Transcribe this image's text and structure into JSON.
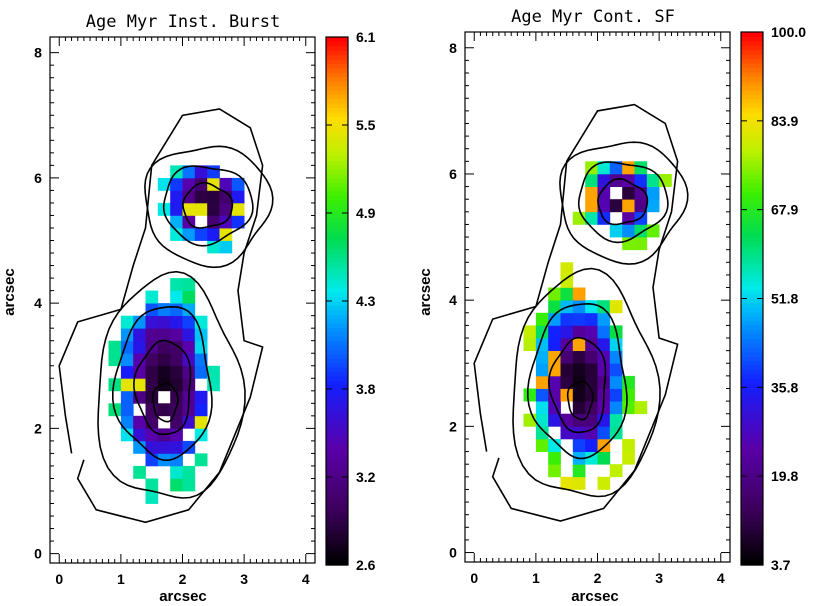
{
  "chart_data": [
    {
      "type": "heatmap",
      "title": "Age Myr Inst. Burst",
      "xlabel": "arcsec",
      "ylabel": "arcsec",
      "xlim": [
        -0.15,
        4.15
      ],
      "ylim": [
        -0.15,
        8.25
      ],
      "xticks": [
        "0",
        "1",
        "2",
        "3",
        "4"
      ],
      "yticks": [
        "0",
        "2",
        "4",
        "6",
        "8"
      ],
      "colorbar": {
        "min": 2.6,
        "max": 6.1,
        "ticks": [
          "2.6",
          "3.2",
          "3.8",
          "4.3",
          "4.9",
          "5.5",
          "6.1"
        ],
        "placement": "right"
      },
      "colormap": "rainbow",
      "cell_size_arcsec": 0.2,
      "blobs": [
        {
          "cx": 2.4,
          "cy": 5.6,
          "rx": 0.55,
          "ry": 0.55,
          "core": 2.75,
          "edge": 4.6
        },
        {
          "cx": 1.7,
          "cy": 2.7,
          "rx": 0.65,
          "ry": 1.25,
          "core": 2.7,
          "edge": 4.8
        }
      ],
      "contours": [
        {
          "cx": 2.4,
          "cy": 5.58,
          "rx": 1.02,
          "ry": 0.95
        },
        {
          "cx": 2.4,
          "cy": 5.58,
          "rx": 0.72,
          "ry": 0.62
        },
        {
          "cx": 2.4,
          "cy": 5.55,
          "rx": 0.4,
          "ry": 0.35
        },
        {
          "cx": 1.78,
          "cy": 2.6,
          "rx": 1.18,
          "ry": 1.78
        },
        {
          "cx": 1.7,
          "cy": 2.72,
          "rx": 0.78,
          "ry": 1.22
        },
        {
          "cx": 1.7,
          "cy": 2.65,
          "rx": 0.45,
          "ry": 0.75
        },
        {
          "cx": 1.72,
          "cy": 2.42,
          "rx": 0.2,
          "ry": 0.3
        }
      ]
    },
    {
      "type": "heatmap",
      "title": "Age Myr Cont. SF",
      "xlabel": "arcsec",
      "ylabel": "arcsec",
      "xlim": [
        -0.15,
        4.15
      ],
      "ylim": [
        -0.15,
        8.25
      ],
      "xticks": [
        "0",
        "1",
        "2",
        "3",
        "4"
      ],
      "yticks": [
        "0",
        "2",
        "4",
        "6",
        "8"
      ],
      "colorbar": {
        "min": 3.7,
        "max": 100.0,
        "ticks": [
          "3.7",
          "19.8",
          "35.8",
          "51.8",
          "67.9",
          "83.9",
          "100.0"
        ],
        "placement": "right"
      },
      "colormap": "rainbow",
      "cell_size_arcsec": 0.2,
      "blobs": [
        {
          "cx": 2.4,
          "cy": 5.6,
          "rx": 0.55,
          "ry": 0.55,
          "core": 8,
          "edge": 80
        },
        {
          "cx": 1.7,
          "cy": 2.7,
          "rx": 0.7,
          "ry": 1.3,
          "core": 6,
          "edge": 85
        }
      ],
      "contours": [
        {
          "cx": 2.4,
          "cy": 5.58,
          "rx": 1.02,
          "ry": 0.95
        },
        {
          "cx": 2.4,
          "cy": 5.58,
          "rx": 0.72,
          "ry": 0.62
        },
        {
          "cx": 2.4,
          "cy": 5.55,
          "rx": 0.4,
          "ry": 0.35
        },
        {
          "cx": 1.78,
          "cy": 2.6,
          "rx": 1.18,
          "ry": 1.78
        },
        {
          "cx": 1.7,
          "cy": 2.72,
          "rx": 0.78,
          "ry": 1.22
        },
        {
          "cx": 1.7,
          "cy": 2.65,
          "rx": 0.45,
          "ry": 0.75
        },
        {
          "cx": 1.72,
          "cy": 2.42,
          "rx": 0.2,
          "ry": 0.3
        }
      ]
    }
  ]
}
